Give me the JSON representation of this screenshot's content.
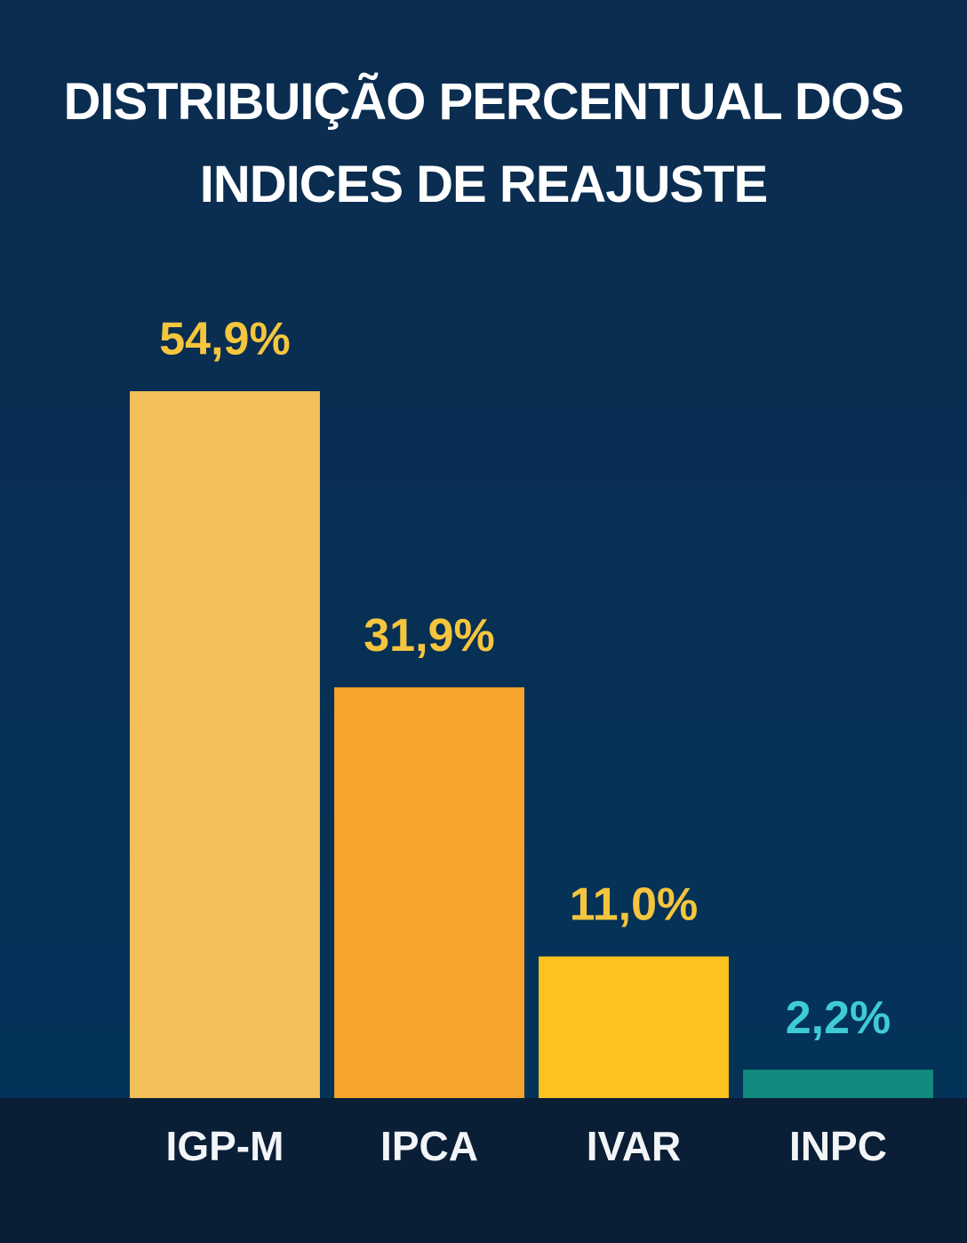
{
  "chart_data": {
    "type": "bar",
    "title": "DISTRIBUIÇÃO PERCENTUAL DOS INDICES DE REAJUSTE",
    "categories": [
      "IGP-M",
      "IPCA",
      "IVAR",
      "INPC"
    ],
    "values": [
      54.9,
      31.9,
      11.0,
      2.2
    ],
    "value_labels": [
      "54,9%",
      "31,9%",
      "11,0%",
      "2,2%"
    ],
    "colors": [
      "#f3bf5a",
      "#f7a42c",
      "#fcc21f",
      "#118b7e"
    ],
    "value_label_colors": [
      "#f5c53d",
      "#f5c53d",
      "#f5c53d",
      "#3fcbd6"
    ]
  }
}
